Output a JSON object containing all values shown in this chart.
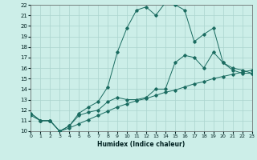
{
  "xlabel": "Humidex (Indice chaleur)",
  "background_color": "#cceee8",
  "grid_color": "#aad4ce",
  "line_color": "#1a6b60",
  "xlim": [
    0,
    23
  ],
  "ylim": [
    10,
    22
  ],
  "yticks": [
    10,
    11,
    12,
    13,
    14,
    15,
    16,
    17,
    18,
    19,
    20,
    21,
    22
  ],
  "xticks": [
    0,
    1,
    2,
    3,
    4,
    5,
    6,
    7,
    8,
    9,
    10,
    11,
    12,
    13,
    14,
    15,
    16,
    17,
    18,
    19,
    20,
    21,
    22,
    23
  ],
  "line1_x": [
    0,
    1,
    2,
    3,
    4,
    5,
    6,
    7,
    8,
    9,
    10,
    11,
    12,
    13,
    14,
    15,
    16,
    17,
    18,
    19,
    20,
    21,
    22,
    23
  ],
  "line1_y": [
    11.7,
    11.0,
    11.0,
    10.0,
    10.5,
    11.7,
    12.3,
    12.8,
    14.2,
    17.5,
    19.8,
    21.5,
    21.8,
    21.0,
    22.2,
    22.0,
    21.5,
    18.5,
    19.2,
    19.8,
    16.5,
    15.8,
    15.5,
    15.5
  ],
  "line2_x": [
    0,
    1,
    2,
    3,
    4,
    5,
    6,
    7,
    8,
    9,
    10,
    11,
    12,
    13,
    14,
    15,
    16,
    17,
    18,
    19,
    20,
    21,
    22,
    23
  ],
  "line2_y": [
    11.7,
    11.0,
    11.0,
    10.0,
    10.5,
    11.5,
    11.8,
    12.0,
    12.8,
    13.2,
    13.0,
    13.0,
    13.2,
    14.0,
    14.0,
    16.5,
    17.2,
    17.0,
    16.0,
    17.5,
    16.5,
    16.0,
    15.8,
    15.5
  ],
  "line3_x": [
    0,
    1,
    2,
    3,
    4,
    5,
    6,
    7,
    8,
    9,
    10,
    11,
    12,
    13,
    14,
    15,
    16,
    17,
    18,
    19,
    20,
    21,
    22,
    23
  ],
  "line3_y": [
    11.5,
    11.0,
    11.0,
    10.0,
    10.3,
    10.7,
    11.1,
    11.5,
    11.9,
    12.3,
    12.6,
    12.9,
    13.1,
    13.4,
    13.7,
    13.9,
    14.2,
    14.5,
    14.7,
    15.0,
    15.2,
    15.4,
    15.6,
    15.8
  ]
}
